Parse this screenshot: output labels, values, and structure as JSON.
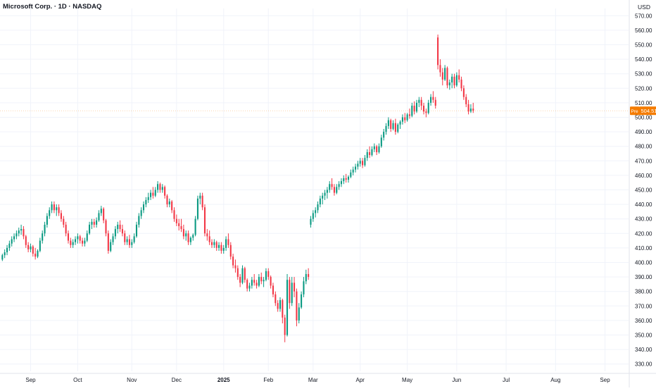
{
  "header": {
    "title": "Microsoft Corp. · 1D · NASDAQ",
    "currency": "USD"
  },
  "price_tag": {
    "label": "Pre",
    "value": "504.51",
    "color": "#f57c00"
  },
  "colors": {
    "up": "#089981",
    "down": "#f23645",
    "grid": "#f0f3fa",
    "axis_text": "#131722"
  },
  "chart_data": {
    "type": "candlestick",
    "title": "Microsoft Corp. · 1D · NASDAQ",
    "ylabel": "USD",
    "ylim": [
      325,
      575
    ],
    "y_ticks": [
      "330.00",
      "340.00",
      "350.00",
      "360.00",
      "370.00",
      "380.00",
      "390.00",
      "400.00",
      "410.00",
      "420.00",
      "430.00",
      "440.00",
      "450.00",
      "460.00",
      "470.00",
      "480.00",
      "490.00",
      "500.00",
      "510.00",
      "520.00",
      "530.00",
      "540.00",
      "550.00",
      "560.00",
      "570.00"
    ],
    "x_ticks": [
      {
        "label": "Sep",
        "index": 12
      },
      {
        "label": "Oct",
        "index": 32
      },
      {
        "label": "Nov",
        "index": 55
      },
      {
        "label": "Dec",
        "index": 74
      },
      {
        "label": "2025",
        "index": 94
      },
      {
        "label": "Feb",
        "index": 113
      },
      {
        "label": "Mar",
        "index": 132
      },
      {
        "label": "Apr",
        "index": 152
      },
      {
        "label": "May",
        "index": 172
      },
      {
        "label": "Jun",
        "index": 193
      },
      {
        "label": "Jul",
        "index": 214
      },
      {
        "label": "Aug",
        "index": 235
      },
      {
        "label": "Sep",
        "index": 256
      }
    ],
    "x_range": [
      -1,
      266
    ],
    "last_close": 504.51,
    "ohlc": [
      [
        402,
        406,
        401,
        405
      ],
      [
        405,
        409,
        403,
        407
      ],
      [
        407,
        412,
        405,
        410
      ],
      [
        410,
        415,
        408,
        413
      ],
      [
        413,
        418,
        411,
        416
      ],
      [
        416,
        420,
        414,
        418
      ],
      [
        418,
        422,
        416,
        420
      ],
      [
        420,
        424,
        418,
        422
      ],
      [
        422,
        426,
        419,
        423
      ],
      [
        423,
        425,
        416,
        418
      ],
      [
        418,
        419,
        410,
        412
      ],
      [
        412,
        414,
        407,
        409
      ],
      [
        409,
        413,
        407,
        411
      ],
      [
        411,
        412,
        404,
        406
      ],
      [
        406,
        410,
        402,
        404
      ],
      [
        404,
        409,
        403,
        408
      ],
      [
        408,
        417,
        407,
        415
      ],
      [
        415,
        422,
        413,
        420
      ],
      [
        420,
        428,
        418,
        426
      ],
      [
        426,
        434,
        424,
        432
      ],
      [
        432,
        438,
        430,
        436
      ],
      [
        436,
        442,
        434,
        440
      ],
      [
        440,
        442,
        434,
        436
      ],
      [
        436,
        440,
        432,
        438
      ],
      [
        438,
        440,
        432,
        434
      ],
      [
        434,
        436,
        428,
        430
      ],
      [
        430,
        432,
        424,
        426
      ],
      [
        426,
        428,
        418,
        420
      ],
      [
        420,
        422,
        413,
        415
      ],
      [
        415,
        417,
        410,
        412
      ],
      [
        412,
        416,
        410,
        414
      ],
      [
        414,
        418,
        412,
        416
      ],
      [
        416,
        420,
        413,
        418
      ],
      [
        418,
        419,
        413,
        415
      ],
      [
        415,
        417,
        411,
        413
      ],
      [
        413,
        417,
        411,
        415
      ],
      [
        415,
        422,
        414,
        420
      ],
      [
        420,
        428,
        419,
        426
      ],
      [
        426,
        430,
        423,
        428
      ],
      [
        428,
        430,
        424,
        426
      ],
      [
        426,
        431,
        424,
        429
      ],
      [
        429,
        436,
        428,
        434
      ],
      [
        434,
        439,
        432,
        437
      ],
      [
        437,
        438,
        427,
        429
      ],
      [
        429,
        430,
        418,
        420
      ],
      [
        420,
        422,
        406,
        408
      ],
      [
        408,
        416,
        407,
        414
      ],
      [
        414,
        420,
        412,
        418
      ],
      [
        418,
        425,
        416,
        423
      ],
      [
        423,
        428,
        420,
        426
      ],
      [
        426,
        429,
        421,
        423
      ],
      [
        423,
        426,
        418,
        420
      ],
      [
        420,
        422,
        412,
        414
      ],
      [
        414,
        418,
        412,
        416
      ],
      [
        416,
        419,
        410,
        412
      ],
      [
        412,
        416,
        410,
        414
      ],
      [
        414,
        420,
        413,
        418
      ],
      [
        418,
        428,
        417,
        426
      ],
      [
        426,
        434,
        424,
        432
      ],
      [
        432,
        438,
        430,
        436
      ],
      [
        436,
        442,
        434,
        440
      ],
      [
        440,
        445,
        438,
        443
      ],
      [
        443,
        448,
        441,
        445
      ],
      [
        445,
        450,
        443,
        448
      ],
      [
        448,
        452,
        444,
        446
      ],
      [
        446,
        452,
        445,
        450
      ],
      [
        450,
        456,
        448,
        454
      ],
      [
        454,
        455,
        448,
        450
      ],
      [
        450,
        454,
        448,
        452
      ],
      [
        452,
        453,
        444,
        446
      ],
      [
        446,
        447,
        438,
        440
      ],
      [
        440,
        444,
        438,
        442
      ],
      [
        442,
        443,
        434,
        436
      ],
      [
        436,
        438,
        428,
        430
      ],
      [
        430,
        433,
        425,
        427
      ],
      [
        427,
        430,
        422,
        425
      ],
      [
        425,
        430,
        421,
        423
      ],
      [
        423,
        426,
        416,
        418
      ],
      [
        418,
        422,
        415,
        420
      ],
      [
        420,
        422,
        412,
        414
      ],
      [
        414,
        418,
        412,
        417
      ],
      [
        417,
        420,
        415,
        419
      ],
      [
        419,
        432,
        418,
        430
      ],
      [
        430,
        446,
        429,
        444
      ],
      [
        444,
        448,
        440,
        446
      ],
      [
        446,
        448,
        436,
        438
      ],
      [
        438,
        440,
        418,
        420
      ],
      [
        420,
        423,
        415,
        418
      ],
      [
        418,
        422,
        412,
        414
      ],
      [
        414,
        416,
        410,
        412
      ],
      [
        412,
        416,
        410,
        414
      ],
      [
        414,
        415,
        408,
        410
      ],
      [
        410,
        414,
        408,
        412
      ],
      [
        412,
        414,
        406,
        408
      ],
      [
        408,
        412,
        406,
        410
      ],
      [
        410,
        418,
        408,
        416
      ],
      [
        416,
        420,
        410,
        412
      ],
      [
        412,
        414,
        402,
        404
      ],
      [
        404,
        406,
        396,
        398
      ],
      [
        398,
        402,
        393,
        396
      ],
      [
        396,
        398,
        388,
        390
      ],
      [
        390,
        392,
        383,
        386
      ],
      [
        386,
        398,
        385,
        396
      ],
      [
        396,
        397,
        386,
        388
      ],
      [
        388,
        389,
        380,
        382
      ],
      [
        382,
        386,
        380,
        384
      ],
      [
        384,
        390,
        382,
        388
      ],
      [
        388,
        392,
        384,
        386
      ],
      [
        386,
        388,
        382,
        384
      ],
      [
        384,
        392,
        383,
        390
      ],
      [
        390,
        393,
        385,
        387
      ],
      [
        387,
        390,
        383,
        388
      ],
      [
        388,
        396,
        387,
        394
      ],
      [
        394,
        396,
        388,
        390
      ],
      [
        390,
        391,
        382,
        384
      ],
      [
        384,
        386,
        376,
        378
      ],
      [
        378,
        380,
        370,
        372
      ],
      [
        372,
        374,
        366,
        368
      ],
      [
        368,
        376,
        366,
        374
      ],
      [
        374,
        375,
        358,
        362
      ],
      [
        362,
        364,
        345,
        350
      ],
      [
        350,
        392,
        349,
        388
      ],
      [
        388,
        390,
        368,
        372
      ],
      [
        372,
        390,
        370,
        386
      ],
      [
        386,
        390,
        376,
        380
      ],
      [
        380,
        382,
        356,
        360
      ],
      [
        360,
        372,
        358,
        369
      ],
      [
        369,
        380,
        368,
        378
      ],
      [
        378,
        390,
        376,
        387
      ],
      [
        387,
        395,
        385,
        392
      ],
      [
        392,
        396,
        388,
        390
      ],
      [
        426,
        432,
        424,
        430
      ],
      [
        430,
        436,
        428,
        434
      ],
      [
        434,
        438,
        431,
        436
      ],
      [
        436,
        442,
        434,
        440
      ],
      [
        440,
        446,
        438,
        444
      ],
      [
        444,
        448,
        440,
        446
      ],
      [
        446,
        450,
        443,
        448
      ],
      [
        448,
        452,
        444,
        450
      ],
      [
        450,
        456,
        448,
        454
      ],
      [
        454,
        458,
        450,
        452
      ],
      [
        452,
        454,
        446,
        448
      ],
      [
        448,
        454,
        447,
        452
      ],
      [
        452,
        456,
        450,
        454
      ],
      [
        454,
        458,
        452,
        456
      ],
      [
        456,
        460,
        454,
        458
      ],
      [
        458,
        461,
        455,
        457
      ],
      [
        457,
        460,
        455,
        459
      ],
      [
        459,
        464,
        458,
        462
      ],
      [
        462,
        466,
        460,
        464
      ],
      [
        464,
        468,
        462,
        466
      ],
      [
        466,
        470,
        464,
        468
      ],
      [
        468,
        472,
        466,
        470
      ],
      [
        470,
        472,
        465,
        467
      ],
      [
        467,
        474,
        466,
        472
      ],
      [
        472,
        478,
        470,
        476
      ],
      [
        476,
        480,
        472,
        474
      ],
      [
        474,
        480,
        473,
        478
      ],
      [
        478,
        482,
        476,
        480
      ],
      [
        480,
        481,
        474,
        476
      ],
      [
        476,
        482,
        475,
        480
      ],
      [
        480,
        488,
        479,
        486
      ],
      [
        486,
        492,
        484,
        490
      ],
      [
        490,
        496,
        488,
        494
      ],
      [
        494,
        500,
        492,
        498
      ],
      [
        498,
        499,
        490,
        492
      ],
      [
        492,
        498,
        491,
        496
      ],
      [
        496,
        499,
        488,
        490
      ],
      [
        490,
        496,
        489,
        495
      ],
      [
        495,
        498,
        492,
        497
      ],
      [
        497,
        502,
        495,
        500
      ],
      [
        500,
        503,
        496,
        498
      ],
      [
        498,
        503,
        497,
        502
      ],
      [
        502,
        506,
        499,
        501
      ],
      [
        501,
        510,
        500,
        508
      ],
      [
        508,
        511,
        502,
        504
      ],
      [
        504,
        512,
        503,
        510
      ],
      [
        510,
        514,
        507,
        512
      ],
      [
        512,
        514,
        505,
        508
      ],
      [
        508,
        510,
        502,
        504
      ],
      [
        504,
        506,
        500,
        503
      ],
      [
        503,
        512,
        502,
        510
      ],
      [
        510,
        516,
        508,
        514
      ],
      [
        514,
        518,
        510,
        512
      ],
      [
        512,
        514,
        506,
        508
      ],
      [
        555,
        557,
        533,
        536
      ],
      [
        536,
        540,
        528,
        531
      ],
      [
        531,
        534,
        522,
        526
      ],
      [
        526,
        536,
        525,
        534
      ],
      [
        534,
        535,
        520,
        522
      ],
      [
        522,
        526,
        519,
        524
      ],
      [
        524,
        530,
        520,
        528
      ],
      [
        528,
        530,
        520,
        522
      ],
      [
        522,
        531,
        521,
        529
      ],
      [
        529,
        533,
        524,
        526
      ],
      [
        526,
        528,
        518,
        520
      ],
      [
        520,
        522,
        512,
        514
      ],
      [
        514,
        516,
        507,
        509
      ],
      [
        509,
        512,
        502,
        504
      ],
      [
        504,
        509,
        503,
        506
      ],
      [
        506,
        510,
        503,
        504.51
      ]
    ]
  }
}
